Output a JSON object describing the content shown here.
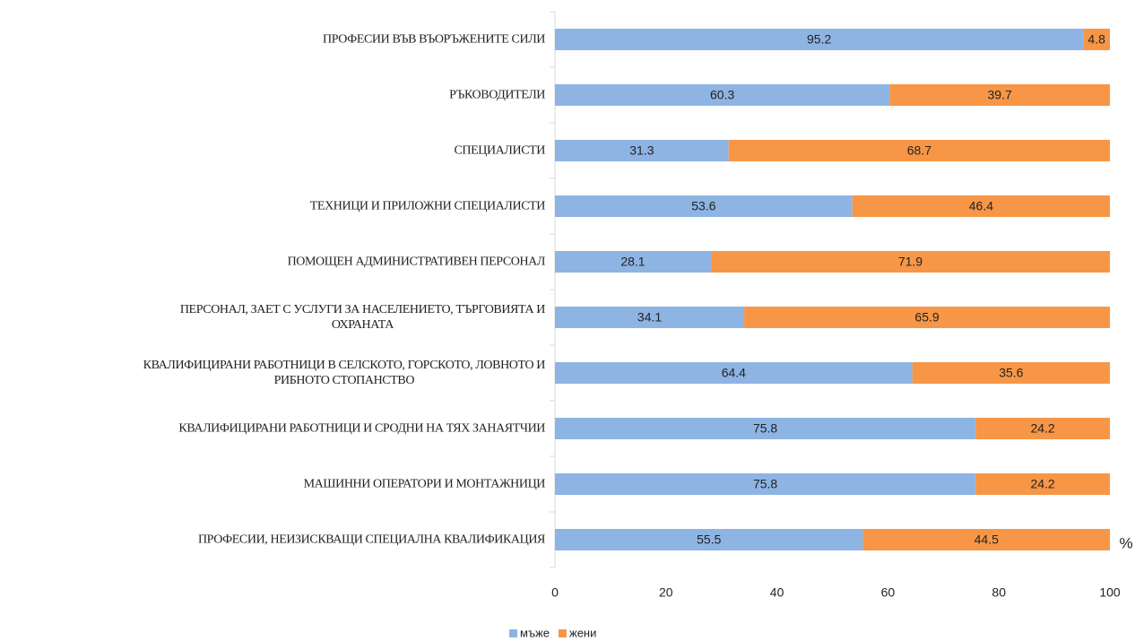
{
  "chart_data": {
    "type": "stacked_barh",
    "categories": [
      "ПРОФЕСИИ ВЪВ ВЪОРЪЖЕНИТЕ СИЛИ",
      "РЪКОВОДИТЕЛИ",
      "СПЕЦИАЛИСТИ",
      "ТЕХНИЦИ И ПРИЛОЖНИ СПЕЦИАЛИСТИ",
      "ПОМОЩЕН АДМИНИСТРАТИВЕН ПЕРСОНАЛ",
      "ПЕРСОНАЛ, ЗАЕТ С УСЛУГИ ЗА НАСЕЛЕНИЕТО, ТЪРГОВИЯТА И\nОХРАНАТА",
      "КВАЛИФИЦИРАНИ РАБОТНИЦИ В СЕЛСКОТО, ГОРСКОТО, ЛОВНОТО И\nРИБНОТО СТОПАНСТВО",
      "КВАЛИФИЦИРАНИ РАБОТНИЦИ И СРОДНИ НА ТЯХ ЗАНАЯТЧИИ",
      "МАШИННИ ОПЕРАТОРИ И МОНТАЖНИЦИ",
      "ПРОФЕСИИ, НЕИЗИСКВАЩИ СПЕЦИАЛНА КВАЛИФИКАЦИЯ"
    ],
    "series": [
      {
        "name": "мъже",
        "color": "#8eb4e3",
        "values": [
          95.2,
          60.3,
          31.3,
          53.6,
          28.1,
          34.1,
          64.4,
          75.8,
          75.8,
          55.5
        ]
      },
      {
        "name": "жени",
        "color": "#f79646",
        "values": [
          4.8,
          39.7,
          68.7,
          46.4,
          71.9,
          65.9,
          35.6,
          24.2,
          24.2,
          44.5
        ]
      }
    ],
    "xlabel": "%",
    "xlim": [
      0,
      100
    ],
    "xticks": [
      0,
      20,
      40,
      60,
      80,
      100
    ],
    "grid": false,
    "legend": "bottom"
  }
}
